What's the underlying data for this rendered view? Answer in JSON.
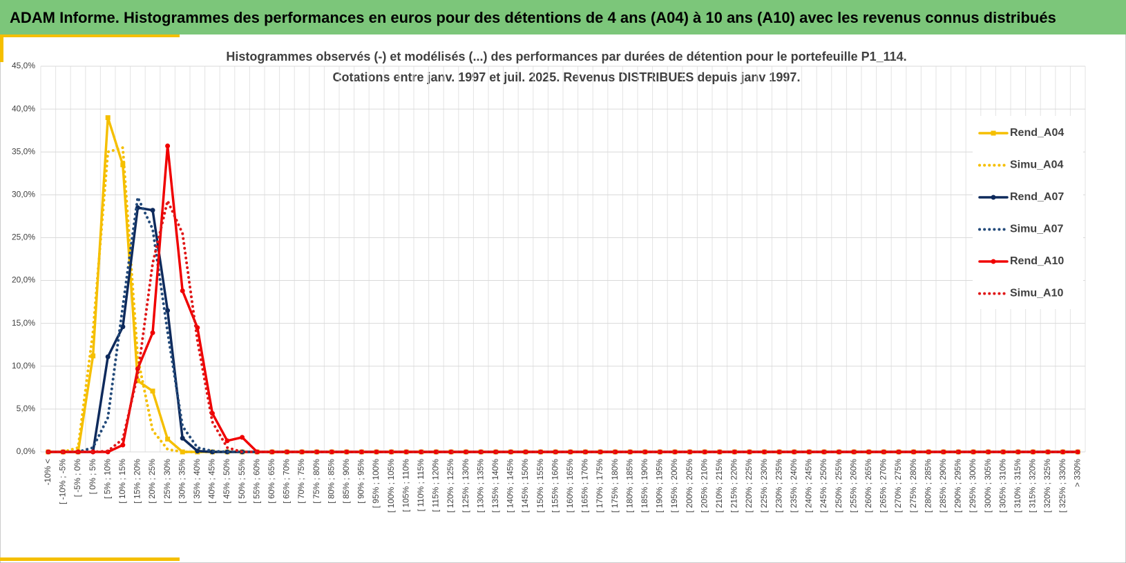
{
  "page_title": "ADAM Informe. Histogrammes des performances en euros pour des détentions de 4 ans (A04) à 10 ans (A10) avec les revenus connus distribués",
  "chart_data": {
    "type": "line",
    "title": "Histogrammes observés (-) et modélisés (...) des performances par durées de détention pour le portefeuille P1_114.",
    "subtitle": "Cotations entre janv. 1997 et juil. 2025. Revenus DISTRIBUES depuis janv 1997.",
    "categories": [
      "-10% <",
      "[ -10% ; -5%",
      "[ -5% ; 0%",
      "[ 0% ; 5%",
      "[ 5% ; 10%",
      "[ 10% ; 15%",
      "[ 15% ; 20%",
      "[ 20% ; 25%",
      "[ 25% ; 30%",
      "[ 30% ; 35%",
      "[ 35% ; 40%",
      "[ 40% ; 45%",
      "[ 45% ; 50%",
      "[ 50% ; 55%",
      "[ 55% ; 60%",
      "[ 60% ; 65%",
      "[ 65% ; 70%",
      "[ 70% ; 75%",
      "[ 75% ; 80%",
      "[ 80% ; 85%",
      "[ 85% ; 90%",
      "[ 90% ; 95%",
      "[ 95% ; 100%",
      "[ 100% ; 105%",
      "[ 105% ; 110%",
      "[ 110% ; 115%",
      "[ 115% ; 120%",
      "[ 120% ; 125%",
      "[ 125% ; 130%",
      "[ 130% ; 135%",
      "[ 135% ; 140%",
      "[ 140% ; 145%",
      "[ 145% ; 150%",
      "[ 150% ; 155%",
      "[ 155% ; 160%",
      "[ 160% ; 165%",
      "[ 165% ; 170%",
      "[ 170% ; 175%",
      "[ 175% ; 180%",
      "[ 180% ; 185%",
      "[ 185% ; 190%",
      "[ 190% ; 195%",
      "[ 195% ; 200%",
      "[ 200% ; 205%",
      "[ 205% ; 210%",
      "[ 210% ; 215%",
      "[ 215% ; 220%",
      "[ 220% ; 225%",
      "[ 225% ; 230%",
      "[ 230% ; 235%",
      "[ 235% ; 240%",
      "[ 240% ; 245%",
      "[ 245% ; 250%",
      "[ 250% ; 255%",
      "[ 255% ; 260%",
      "[ 260% ; 265%",
      "[ 265% ; 270%",
      "[ 270% ; 275%",
      "[ 275% ; 280%",
      "[ 280% ; 285%",
      "[ 285% ; 290%",
      "[ 290% ; 295%",
      "[ 295% ; 300%",
      "[ 300% ; 305%",
      "[ 305% ; 310%",
      "[ 310% ; 315%",
      "[ 315% ; 320%",
      "[ 320% ; 325%",
      "[ 325% ; 330%",
      "> 330%"
    ],
    "series": [
      {
        "name": "Rend_A04",
        "color": "#f5bf00",
        "style": "solid",
        "marker": "square",
        "values": [
          0,
          0,
          0,
          11.2,
          39,
          33.5,
          8.3,
          7.1,
          1.5,
          0,
          0,
          0,
          0,
          0,
          0,
          0,
          0,
          0,
          0,
          0,
          0,
          0,
          0,
          0,
          0,
          0,
          0,
          0,
          0,
          0,
          0,
          0,
          0,
          0,
          0,
          0,
          0,
          0,
          0,
          0,
          0,
          0,
          0,
          0,
          0,
          0,
          0,
          0,
          0,
          0,
          0,
          0,
          0,
          0,
          0,
          0,
          0,
          0,
          0,
          0,
          0,
          0,
          0,
          0,
          0,
          0,
          0,
          0,
          0,
          0
        ]
      },
      {
        "name": "Simu_A04",
        "color": "#f5bf00",
        "style": "dotted",
        "marker": "none",
        "values": [
          0,
          0,
          0.5,
          14,
          35,
          35.5,
          11,
          2.5,
          0.3,
          0,
          0,
          0,
          0,
          0,
          0,
          0,
          0,
          0,
          0,
          0,
          0,
          0,
          0,
          0,
          0,
          0,
          0,
          0,
          0,
          0,
          0,
          0,
          0,
          0,
          0,
          0,
          0,
          0,
          0,
          0,
          0,
          0,
          0,
          0,
          0,
          0,
          0,
          0,
          0,
          0,
          0,
          0,
          0,
          0,
          0,
          0,
          0,
          0,
          0,
          0,
          0,
          0,
          0,
          0,
          0,
          0,
          0,
          0,
          0,
          0
        ]
      },
      {
        "name": "Rend_A07",
        "color": "#0e2a5c",
        "style": "solid",
        "marker": "circle",
        "values": [
          0,
          0,
          0,
          0,
          11.1,
          14.6,
          28.5,
          28.2,
          16.5,
          1.6,
          0.1,
          0,
          0,
          0,
          0,
          0,
          0,
          0,
          0,
          0,
          0,
          0,
          0,
          0,
          0,
          0,
          0,
          0,
          0,
          0,
          0,
          0,
          0,
          0,
          0,
          0,
          0,
          0,
          0,
          0,
          0,
          0,
          0,
          0,
          0,
          0,
          0,
          0,
          0,
          0,
          0,
          0,
          0,
          0,
          0,
          0,
          0,
          0,
          0,
          0,
          0,
          0,
          0,
          0,
          0,
          0,
          0,
          0,
          0,
          0
        ]
      },
      {
        "name": "Simu_A07",
        "color": "#234a7a",
        "style": "dotted",
        "marker": "none",
        "values": [
          0,
          0,
          0,
          0.5,
          4,
          17,
          29.7,
          26,
          14,
          3,
          0.5,
          0.1,
          0,
          0,
          0,
          0,
          0,
          0,
          0,
          0,
          0,
          0,
          0,
          0,
          0,
          0,
          0,
          0,
          0,
          0,
          0,
          0,
          0,
          0,
          0,
          0,
          0,
          0,
          0,
          0,
          0,
          0,
          0,
          0,
          0,
          0,
          0,
          0,
          0,
          0,
          0,
          0,
          0,
          0,
          0,
          0,
          0,
          0,
          0,
          0,
          0,
          0,
          0,
          0,
          0,
          0,
          0,
          0,
          0,
          0
        ]
      },
      {
        "name": "Rend_A10",
        "color": "#f00000",
        "style": "solid",
        "marker": "circle",
        "values": [
          0,
          0,
          0,
          0,
          0,
          0.8,
          9.7,
          13.9,
          35.7,
          18.8,
          14.5,
          4.5,
          1.3,
          1.7,
          0,
          0,
          0,
          0,
          0,
          0,
          0,
          0,
          0,
          0,
          0,
          0,
          0,
          0,
          0,
          0,
          0,
          0,
          0,
          0,
          0,
          0,
          0,
          0,
          0,
          0,
          0,
          0,
          0,
          0,
          0,
          0,
          0,
          0,
          0,
          0,
          0,
          0,
          0,
          0,
          0,
          0,
          0,
          0,
          0,
          0,
          0,
          0,
          0,
          0,
          0,
          0,
          0,
          0,
          0,
          0
        ]
      },
      {
        "name": "Simu_A10",
        "color": "#e01818",
        "style": "dotted",
        "marker": "none",
        "values": [
          0,
          0,
          0,
          0,
          0.1,
          1.5,
          9,
          22,
          29.3,
          25.5,
          13,
          3.5,
          0.5,
          0,
          0,
          0,
          0,
          0,
          0,
          0,
          0,
          0,
          0,
          0,
          0,
          0,
          0,
          0,
          0,
          0,
          0,
          0,
          0,
          0,
          0,
          0,
          0,
          0,
          0,
          0,
          0,
          0,
          0,
          0,
          0,
          0,
          0,
          0,
          0,
          0,
          0,
          0,
          0,
          0,
          0,
          0,
          0,
          0,
          0,
          0,
          0,
          0,
          0,
          0,
          0,
          0,
          0,
          0,
          0,
          0
        ]
      }
    ],
    "ylim": [
      0,
      45
    ],
    "yticks": [
      {
        "value": 0,
        "label": "0,0%"
      },
      {
        "value": 5,
        "label": "5,0%"
      },
      {
        "value": 10,
        "label": "10,0%"
      },
      {
        "value": 15,
        "label": "15,0%"
      },
      {
        "value": 20,
        "label": "20,0%"
      },
      {
        "value": 25,
        "label": "25,0%"
      },
      {
        "value": 30,
        "label": "30,0%"
      },
      {
        "value": 35,
        "label": "35,0%"
      },
      {
        "value": 40,
        "label": "40,0%"
      },
      {
        "value": 45,
        "label": "45,0%"
      }
    ],
    "grid": true,
    "legend": "right"
  }
}
